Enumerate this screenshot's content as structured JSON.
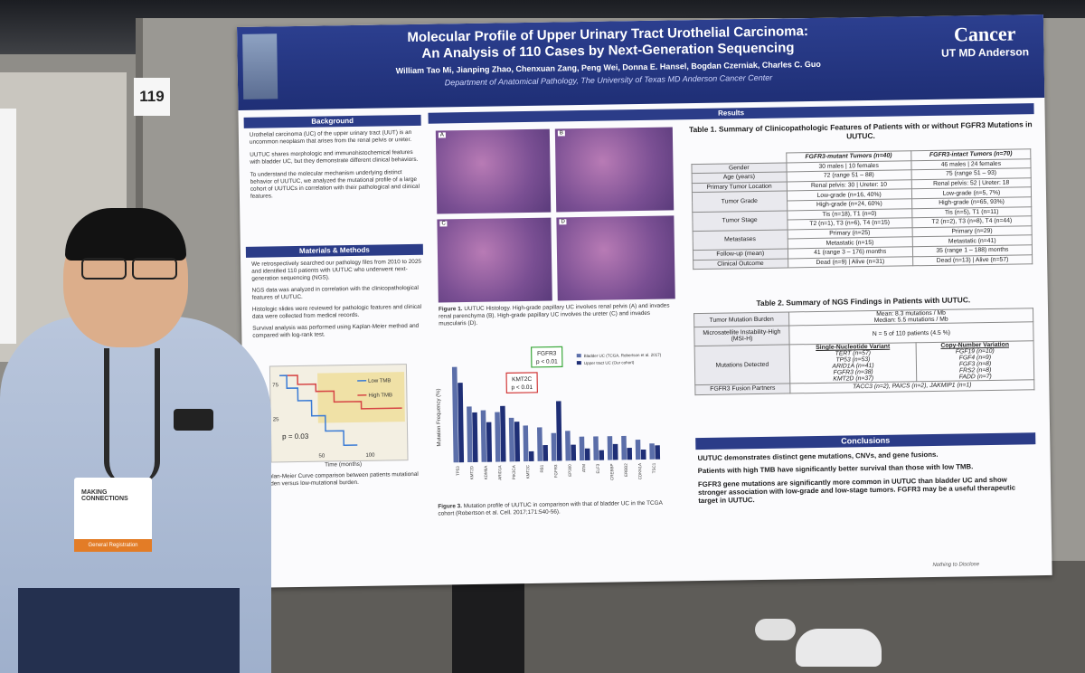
{
  "board_number": "119",
  "header": {
    "title_line1": "Molecular Profile of Upper Urinary Tract Urothelial Carcinoma:",
    "title_line2": "An Analysis of 110 Cases by Next-Generation Sequencing",
    "authors": "William Tao Mi, Jianping Zhao, Chenxuan Zang, Peng Wei, Donna E. Hansel, Bogdan Czerniak, Charles C. Guo",
    "department": "Department of Anatomical Pathology, The University of Texas MD Anderson Cancer Center",
    "logo_top": "Cancer",
    "logo_bottom": "UT MD Anderson"
  },
  "background": {
    "heading": "Background",
    "bullets": [
      "Urothelial carcinoma (UC) of the upper urinary tract (UUT) is an uncommon neoplasm that arises from the renal pelvis or ureter.",
      "UUTUC shares morphologic and immunohistochemical features with bladder UC, but they demonstrate different clinical behaviors.",
      "To understand the molecular mechanism underlying distinct behavior of UUTUC, we analyzed the mutational profile of a large cohort of UUTUCs in correlation with their pathological and clinical features."
    ]
  },
  "methods": {
    "heading": "Materials & Methods",
    "bullets": [
      "We retrospectively searched our pathology files from 2010 to 2025 and identified 110 patients with UUTUC who underwent next-generation sequencing (NGS).",
      "NGS data was analyzed in correlation with the clinicopathological features of UUTUC.",
      "Histologic slides were reviewed for pathologic features and clinical data were collected from medical records.",
      "Survival analysis was performed using Kaplan-Meier method and compared with log-rank test."
    ]
  },
  "km": {
    "legend_low": "Low TMB",
    "legend_high": "High TMB",
    "pvalue": "p = 0.03",
    "xaxis_label": "Time (months)",
    "tick_50": "50",
    "tick_100": "100",
    "tick_75": "75",
    "tick_25": "25",
    "caption": "Kaplan-Meier Curve comparison between patients mutational burden versus low-mutational burden."
  },
  "results": {
    "heading": "Results",
    "panel_labels": [
      "A",
      "B",
      "C",
      "D"
    ],
    "figure1_caption_bold": "Figure 1.",
    "figure1_caption": " UUTUC Histology. High-grade papillary UC involves renal pelvis (A) and invades renal parenchyma (B). High-grade papillary UC involves the ureter (C) and invades muscularis (D).",
    "figure3_caption_bold": "Figure 3.",
    "figure3_caption": " Mutation profile of UUTUC in comparison with that of bladder UC in the TCGA cohort (Robertson et al. Cell. 2017;171:540-56).",
    "fgfr3_callout": "FGFR3",
    "fgfr3_p": "p < 0.01",
    "kmt2c_callout": "KMT2C",
    "kmt2c_p": "p < 0.01",
    "ylabel": "Mutation Frequency (%)",
    "legend_bladder": "Bladder UC (TCGA, Robertson et al. 2017)",
    "legend_upper": "Upper tract UC (Our cohort)"
  },
  "chart_data": {
    "type": "bar",
    "ylabel": "Mutation Frequency (%)",
    "categories": [
      "TP53",
      "KMT2D",
      "KDM6A",
      "ARID1A",
      "PIK3CA",
      "KMT2C",
      "RB1",
      "FGFR3",
      "EP300",
      "ATM",
      "ELF3",
      "CREBBP",
      "ERBB2",
      "CDKN1A",
      "TSC1"
    ],
    "series": [
      {
        "name": "Bladder UC (TCGA, Robertson et al. 2017)",
        "values": [
          48,
          28,
          26,
          25,
          22,
          18,
          17,
          14,
          15,
          12,
          12,
          12,
          12,
          10,
          8
        ]
      },
      {
        "name": "Upper tract UC (Our cohort)",
        "values": [
          40,
          25,
          20,
          28,
          20,
          5,
          8,
          30,
          8,
          6,
          5,
          8,
          6,
          5,
          7
        ]
      }
    ]
  },
  "table1": {
    "title": "Table 1. Summary of Clinicopathologic Features of Patients with or without FGFR3 Mutations in UUTUC.",
    "col1": "FGFR3-mutant Tumors (n=40)",
    "col2": "FGFR3-intact Tumors (n=70)",
    "rows": [
      {
        "label": "Gender",
        "a": "30 males | 10 females",
        "b": "46 males | 24 females"
      },
      {
        "label": "Age (years)",
        "a": "72 (range 51 – 88)",
        "b": "75 (range 51 – 93)"
      },
      {
        "label": "Primary Tumor Location",
        "a": "Renal pelvis: 30 | Ureter: 10",
        "b": "Renal pelvis: 52 | Ureter: 18"
      },
      {
        "label": "Tumor Grade",
        "a": "Low-grade (n=16, 40%)",
        "a2": "High-grade (n=24, 60%)",
        "b": "Low-grade (n=5, 7%)",
        "b2": "High-grade (n=65, 93%)"
      },
      {
        "label": "Tumor Stage",
        "a": "Tis (n=18), T1 (n=0)",
        "a2": "T2 (n=1), T3 (n=6), T4 (n=15)",
        "b": "Tis (n=5), T1 (n=11)",
        "b2": "T2 (n=2), T3 (n=8), T4 (n=44)"
      },
      {
        "label": "Metastases",
        "a": "Primary (n=25)",
        "a2": "Metastatic (n=15)",
        "b": "Primary (n=29)",
        "b2": "Metastatic (n=41)"
      },
      {
        "label": "Follow-up (mean)",
        "a": "41 (range 3 – 176) months",
        "b": "35 (range 1 – 188) months"
      },
      {
        "label": "Clinical Outcome",
        "a": "Dead (n=9) | Alive (n=31)",
        "b": "Dead (n=13) | Alive (n=57)"
      }
    ]
  },
  "table2": {
    "title": "Table 2. Summary of NGS Findings in Patients with UUTUC.",
    "tmb_label": "Tumor Mutation Burden",
    "tmb_mean": "Mean: 8.3 mutations / Mb",
    "tmb_median": "Median: 5.5 mutations / Mb",
    "msi_label": "Microsatellite Instability-High (MSI-H)",
    "msi_value": "N = 5 of 110 patients (4.5 %)",
    "mut_label": "Mutations Detected",
    "snv_head": "Single-Nucleotide Variant",
    "cnv_head": "Copy-Number Variation",
    "snv": [
      "TERT (n=57)",
      "TP53 (n=53)",
      "ARID1A (n=41)",
      "FGFR3 (n=38)",
      "KMT2D (n=37)"
    ],
    "cnv": [
      "FGF19 (n=10)",
      "FGF4 (n=9)",
      "FGF3 (n=8)",
      "FRS2 (n=8)",
      "FADD (n=7)"
    ],
    "fusion_label": "FGFR3 Fusion Partners",
    "fusion_value": "TACC3 (n=2), PAICS (n=2), JAKMIP1 (n=1)"
  },
  "conclusions": {
    "heading": "Conclusions",
    "items": [
      "UUTUC demonstrates distinct gene mutations, CNVs, and gene fusions.",
      "Patients with high TMB have significantly better survival than those with low TMB.",
      "FGFR3 gene mutations are significantly more common in UUTUC than bladder UC and show stronger association with low-grade and low-stage tumors. FGFR3 may be a useful therapeutic target in UUTUC."
    ]
  },
  "footer_note": "Nothing to Disclose",
  "badge": {
    "title_line1": "MAKING",
    "title_line2": "CONNECTIONS",
    "strip": "General Registration"
  },
  "colors": {
    "poster_blue": "#2b3c88",
    "bar_bladder": "#5b6ea9",
    "bar_upper": "#1f2f76",
    "callout_red": "#d23a3a",
    "callout_green": "#3aa83a"
  }
}
